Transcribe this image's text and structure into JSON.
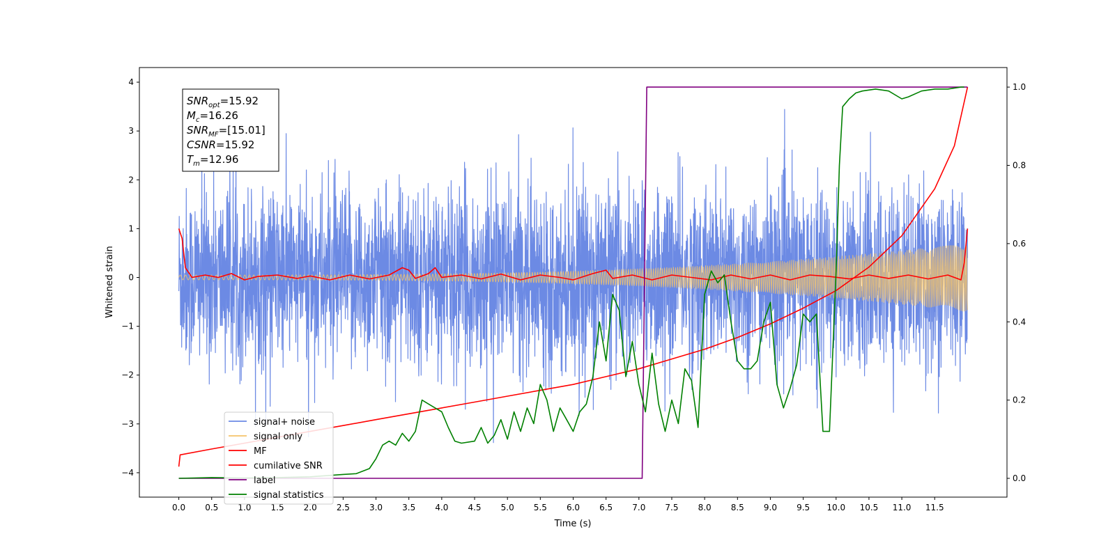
{
  "chart_data": {
    "type": "line",
    "xlabel": "Time (s)",
    "ylabel_left": "Whitened strain",
    "ylabel_right": "",
    "xlim": [
      -0.6,
      12.6
    ],
    "ylim_left": [
      -4.5,
      4.3
    ],
    "ylim_right": [
      -0.048,
      1.05
    ],
    "x_ticks": [
      0.0,
      0.5,
      1.0,
      1.5,
      2.0,
      2.5,
      3.0,
      3.5,
      4.0,
      4.5,
      5.0,
      5.5,
      6.0,
      6.5,
      7.0,
      7.5,
      8.0,
      8.5,
      9.0,
      9.5,
      10.0,
      10.5,
      11.0,
      11.5
    ],
    "x_tick_labels": [
      "0.0",
      "0.5",
      "1.0",
      "1.5",
      "2.0",
      "2.5",
      "3.0",
      "3.5",
      "4.0",
      "4.5",
      "5.0",
      "5.5",
      "6.0",
      "6.5",
      "7.0",
      "7.5",
      "8.0",
      "8.5",
      "9.0",
      "9.5",
      "10.0",
      "10.5",
      "11.0",
      "11.5"
    ],
    "y_ticks_left": [
      4,
      3,
      2,
      1,
      0,
      -1,
      -2,
      -3,
      -4
    ],
    "y_tick_labels_left": [
      "4",
      "3",
      "2",
      "1",
      "0",
      "−1",
      "−2",
      "−3",
      "−4"
    ],
    "y_ticks_right": [
      1.0,
      0.8,
      0.6,
      0.4,
      0.2,
      0.0
    ],
    "y_tick_labels_right": [
      "1.0",
      "0.8",
      "0.6",
      "0.4",
      "0.2",
      "0.0"
    ],
    "legend_position": "lower-left",
    "series": [
      {
        "name": "signal+ noise",
        "axis": "left",
        "color": "#6c8ae4",
        "kind": "noise",
        "sigma": 0.9,
        "t_start": 0.0,
        "t_end": 12.0
      },
      {
        "name": "signal only",
        "axis": "left",
        "color": "#f5c36a",
        "kind": "chirp",
        "amplitude_start": 0.05,
        "amplitude_end": 0.7,
        "t_start": 0.0,
        "t_end": 12.0
      },
      {
        "name": "MF",
        "axis": "left",
        "color": "#ff0000",
        "kind": "line",
        "x": [
          0.0,
          0.05,
          0.1,
          0.2,
          0.4,
          0.6,
          0.8,
          1.0,
          1.2,
          1.5,
          1.8,
          2.0,
          2.3,
          2.6,
          2.9,
          3.2,
          3.4,
          3.5,
          3.6,
          3.8,
          3.9,
          4.0,
          4.3,
          4.6,
          4.9,
          5.2,
          5.5,
          5.8,
          6.0,
          6.3,
          6.5,
          6.6,
          6.9,
          7.2,
          7.5,
          7.8,
          8.1,
          8.4,
          8.7,
          9.0,
          9.3,
          9.6,
          9.9,
          10.2,
          10.5,
          10.8,
          11.1,
          11.4,
          11.7,
          11.9,
          11.95,
          12.0
        ],
        "y": [
          1.0,
          0.8,
          0.2,
          0.0,
          0.05,
          0.0,
          0.08,
          -0.05,
          0.02,
          0.05,
          -0.02,
          0.03,
          -0.05,
          0.05,
          -0.03,
          0.05,
          0.2,
          0.15,
          -0.02,
          0.08,
          0.2,
          0.0,
          0.05,
          -0.03,
          0.07,
          -0.05,
          0.05,
          0.0,
          -0.05,
          0.08,
          0.15,
          -0.02,
          0.05,
          -0.05,
          0.05,
          0.0,
          -0.05,
          0.05,
          -0.03,
          0.05,
          -0.05,
          0.05,
          0.02,
          -0.03,
          0.05,
          -0.02,
          0.05,
          -0.03,
          0.05,
          -0.05,
          0.3,
          1.0
        ]
      },
      {
        "name": "cumilative SNR",
        "axis": "right",
        "color": "#ff0000",
        "kind": "line",
        "x": [
          0.0,
          0.02,
          0.5,
          1.0,
          1.5,
          2.0,
          2.5,
          3.0,
          3.5,
          4.0,
          4.5,
          5.0,
          5.5,
          6.0,
          6.5,
          7.0,
          7.5,
          8.0,
          8.5,
          9.0,
          9.5,
          10.0,
          10.5,
          11.0,
          11.5,
          11.8,
          12.0
        ],
        "y": [
          0.03,
          0.06,
          0.075,
          0.09,
          0.105,
          0.12,
          0.135,
          0.15,
          0.165,
          0.18,
          0.195,
          0.21,
          0.225,
          0.24,
          0.26,
          0.28,
          0.305,
          0.33,
          0.36,
          0.395,
          0.435,
          0.48,
          0.54,
          0.62,
          0.74,
          0.85,
          1.0
        ]
      },
      {
        "name": "label",
        "axis": "right",
        "color": "#800080",
        "kind": "line",
        "x": [
          0.0,
          7.05,
          7.12,
          12.0
        ],
        "y": [
          0.0,
          0.0,
          1.0,
          1.0
        ]
      },
      {
        "name": "signal statistics",
        "axis": "right",
        "color": "#008000",
        "kind": "line",
        "x": [
          0.0,
          0.5,
          1.0,
          1.5,
          2.0,
          2.5,
          2.7,
          2.9,
          3.0,
          3.1,
          3.2,
          3.3,
          3.4,
          3.5,
          3.6,
          3.7,
          3.8,
          3.9,
          4.0,
          4.1,
          4.2,
          4.3,
          4.5,
          4.6,
          4.7,
          4.8,
          4.9,
          5.0,
          5.1,
          5.2,
          5.3,
          5.4,
          5.5,
          5.6,
          5.7,
          5.8,
          5.9,
          6.0,
          6.1,
          6.2,
          6.3,
          6.4,
          6.5,
          6.6,
          6.7,
          6.8,
          6.9,
          7.0,
          7.1,
          7.2,
          7.3,
          7.4,
          7.5,
          7.6,
          7.7,
          7.8,
          7.9,
          8.0,
          8.1,
          8.2,
          8.3,
          8.4,
          8.5,
          8.6,
          8.7,
          8.8,
          8.9,
          9.0,
          9.1,
          9.2,
          9.3,
          9.4,
          9.5,
          9.6,
          9.7,
          9.8,
          9.9,
          10.0,
          10.05,
          10.1,
          10.2,
          10.3,
          10.4,
          10.6,
          10.8,
          11.0,
          11.1,
          11.3,
          11.5,
          11.7,
          11.9,
          11.95
        ],
        "y": [
          0.0,
          0.002,
          0.001,
          0.002,
          0.004,
          0.01,
          0.012,
          0.025,
          0.05,
          0.085,
          0.095,
          0.085,
          0.115,
          0.095,
          0.12,
          0.2,
          0.19,
          0.18,
          0.17,
          0.13,
          0.095,
          0.09,
          0.095,
          0.13,
          0.09,
          0.11,
          0.15,
          0.1,
          0.17,
          0.12,
          0.18,
          0.14,
          0.24,
          0.2,
          0.12,
          0.18,
          0.15,
          0.12,
          0.17,
          0.19,
          0.26,
          0.4,
          0.3,
          0.47,
          0.43,
          0.26,
          0.35,
          0.24,
          0.17,
          0.32,
          0.19,
          0.12,
          0.2,
          0.14,
          0.28,
          0.25,
          0.13,
          0.47,
          0.53,
          0.5,
          0.52,
          0.4,
          0.3,
          0.28,
          0.28,
          0.3,
          0.4,
          0.45,
          0.24,
          0.18,
          0.23,
          0.29,
          0.42,
          0.4,
          0.42,
          0.12,
          0.12,
          0.53,
          0.8,
          0.95,
          0.97,
          0.985,
          0.99,
          0.995,
          0.99,
          0.97,
          0.975,
          0.99,
          0.995,
          0.995,
          1.0,
          1.0
        ]
      }
    ],
    "annotation": {
      "lines": [
        {
          "var": "SNR",
          "sub": "opt",
          "value": "=15.92"
        },
        {
          "var": "M",
          "sub": "c",
          "value": "=16.26"
        },
        {
          "var": "SNR",
          "sub": "MF",
          "value": "=[15.01]"
        },
        {
          "var": "CSNR",
          "sub": "",
          "value": "=15.92"
        },
        {
          "var": "T",
          "sub": "m",
          "value": "=12.96"
        }
      ]
    }
  }
}
